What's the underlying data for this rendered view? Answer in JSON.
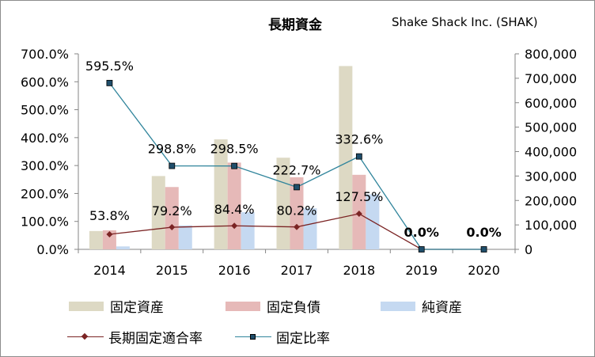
{
  "header": {
    "title": "長期資金",
    "company": "Shake Shack Inc. (SHAK)"
  },
  "chart_data": {
    "type": "bar",
    "categories": [
      "2014",
      "2015",
      "2016",
      "2017",
      "2018",
      "2019",
      "2020"
    ],
    "y_left_ticks": [
      "0.0%",
      "100.0%",
      "200.0%",
      "300.0%",
      "400.0%",
      "500.0%",
      "600.0%",
      "700.0%"
    ],
    "y_right_ticks": [
      "0",
      "100,000",
      "200,000",
      "300,000",
      "400,000",
      "500,000",
      "600,000",
      "700,000",
      "800,000"
    ],
    "ylim_left": [
      0,
      700
    ],
    "ylim_right": [
      0,
      800000
    ],
    "bar_series": [
      {
        "name": "固定資産",
        "color": "#ddd9c4",
        "values": [
          75000,
          300000,
          450000,
          375000,
          750000,
          0,
          0
        ]
      },
      {
        "name": "固定負債",
        "color": "#e6b9b8",
        "values": [
          78000,
          255000,
          355000,
          295000,
          305000,
          0,
          0
        ]
      },
      {
        "name": "純資産",
        "color": "#c5d9f1",
        "values": [
          12000,
          98000,
          152000,
          168000,
          225000,
          0,
          0
        ]
      }
    ],
    "line_series": [
      {
        "name": "長期固定適合率",
        "color": "#7b2424",
        "marker": "diamond",
        "values": [
          53.8,
          79.2,
          84.4,
          80.2,
          127.5,
          0.0,
          0.0
        ],
        "labels": [
          "53.8%",
          "79.2%",
          "84.4%",
          "80.2%",
          "127.5%",
          "0.0%",
          "0.0%"
        ]
      },
      {
        "name": "固定比率",
        "color": "#31859c",
        "marker": "square",
        "values": [
          595.5,
          298.8,
          298.5,
          222.7,
          332.6,
          0.0,
          0.0
        ],
        "labels": [
          "595.5%",
          "298.8%",
          "298.5%",
          "222.7%",
          "332.6%",
          "0.0%",
          "0.0%"
        ]
      }
    ],
    "legend_position": "bottom",
    "grid": false
  }
}
